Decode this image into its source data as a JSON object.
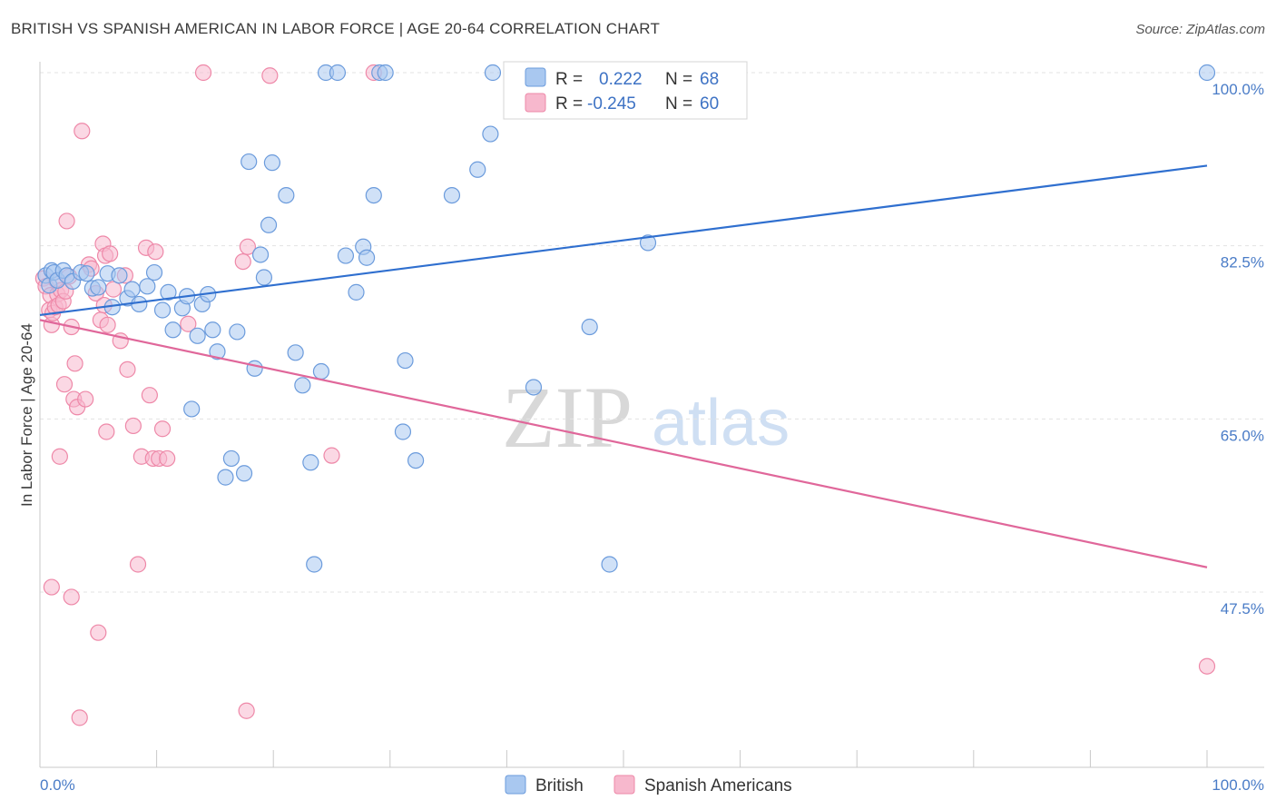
{
  "header": {
    "title": "BRITISH VS SPANISH AMERICAN IN LABOR FORCE | AGE 20-64 CORRELATION CHART",
    "source": "Source: ZipAtlas.com"
  },
  "watermark": {
    "zip": "ZIP",
    "atlas": "atlas"
  },
  "legend": {
    "british": {
      "r_label": "R =",
      "r_value": "0.222",
      "n_label": "N =",
      "n_value": "68"
    },
    "spanish": {
      "r_label": "R =",
      "r_value": "-0.245",
      "n_label": "N =",
      "n_value": "60"
    }
  },
  "bottom_legend": {
    "british": "British",
    "spanish": "Spanish Americans"
  },
  "colors": {
    "british_fill": "#a9c8f0",
    "british_stroke": "#6b9bdc",
    "british_line": "#2f6fcf",
    "spanish_fill": "#f7b8cd",
    "spanish_stroke": "#ee88a8",
    "spanish_line": "#e0679a"
  },
  "chart_data": {
    "type": "scatter",
    "title": "BRITISH VS SPANISH AMERICAN IN LABOR FORCE | AGE 20-64 CORRELATION CHART",
    "xlabel": "",
    "ylabel": "In Labor Force | Age 20-64",
    "xlim": [
      0,
      100
    ],
    "ylim": [
      30,
      102
    ],
    "x_tick_labels": [
      "0.0%",
      "100.0%"
    ],
    "y_ticks": [
      47.5,
      65.0,
      82.5,
      100.0
    ],
    "y_tick_labels": [
      "47.5%",
      "65.0%",
      "82.5%",
      "100.0%"
    ],
    "series": [
      {
        "name": "British",
        "r": 0.222,
        "n": 68,
        "trend": {
          "x": [
            0,
            100
          ],
          "y": [
            75.5,
            90.6
          ]
        },
        "points": [
          [
            0.5,
            79.5
          ],
          [
            0.8,
            78.5
          ],
          [
            1.0,
            80.0
          ],
          [
            1.2,
            79.8
          ],
          [
            1.5,
            79.0
          ],
          [
            2.0,
            80.0
          ],
          [
            2.3,
            79.5
          ],
          [
            2.8,
            78.9
          ],
          [
            3.5,
            79.8
          ],
          [
            4.0,
            79.7
          ],
          [
            4.5,
            78.2
          ],
          [
            5.0,
            78.3
          ],
          [
            5.8,
            79.7
          ],
          [
            6.2,
            76.3
          ],
          [
            6.8,
            79.5
          ],
          [
            7.5,
            77.2
          ],
          [
            7.9,
            78.1
          ],
          [
            8.5,
            76.6
          ],
          [
            9.2,
            78.4
          ],
          [
            9.8,
            79.8
          ],
          [
            10.5,
            76.0
          ],
          [
            11.0,
            77.8
          ],
          [
            11.4,
            74.0
          ],
          [
            12.2,
            76.2
          ],
          [
            12.6,
            77.4
          ],
          [
            13.0,
            66.0
          ],
          [
            13.5,
            73.4
          ],
          [
            13.9,
            76.6
          ],
          [
            14.4,
            77.6
          ],
          [
            14.8,
            74.0
          ],
          [
            15.2,
            71.8
          ],
          [
            15.9,
            59.1
          ],
          [
            16.4,
            61.0
          ],
          [
            16.9,
            73.8
          ],
          [
            17.5,
            59.5
          ],
          [
            17.9,
            91.0
          ],
          [
            18.4,
            70.1
          ],
          [
            18.9,
            81.6
          ],
          [
            19.2,
            79.3
          ],
          [
            19.6,
            84.6
          ],
          [
            19.9,
            90.9
          ],
          [
            21.1,
            87.6
          ],
          [
            21.9,
            71.7
          ],
          [
            22.5,
            68.4
          ],
          [
            23.2,
            60.6
          ],
          [
            23.5,
            50.3
          ],
          [
            24.1,
            69.8
          ],
          [
            24.5,
            100.0
          ],
          [
            25.5,
            100.0
          ],
          [
            26.2,
            81.5
          ],
          [
            27.1,
            77.8
          ],
          [
            27.7,
            82.4
          ],
          [
            28.0,
            81.3
          ],
          [
            28.6,
            87.6
          ],
          [
            29.1,
            100.0
          ],
          [
            29.6,
            100.0
          ],
          [
            31.3,
            70.9
          ],
          [
            31.1,
            63.7
          ],
          [
            32.2,
            60.8
          ],
          [
            35.3,
            87.6
          ],
          [
            37.5,
            90.2
          ],
          [
            38.6,
            93.8
          ],
          [
            38.8,
            100.0
          ],
          [
            42.3,
            68.2
          ],
          [
            47.1,
            74.3
          ],
          [
            48.8,
            50.3
          ],
          [
            52.1,
            82.8
          ],
          [
            100.0,
            100.0
          ]
        ]
      },
      {
        "name": "Spanish Americans",
        "r": -0.245,
        "n": 60,
        "trend": {
          "x": [
            0,
            100
          ],
          "y": [
            75.0,
            50.0
          ]
        },
        "points": [
          [
            0.3,
            79.2
          ],
          [
            0.5,
            78.4
          ],
          [
            0.8,
            76.0
          ],
          [
            0.9,
            77.5
          ],
          [
            1.0,
            74.5
          ],
          [
            1.1,
            75.7
          ],
          [
            1.3,
            76.3
          ],
          [
            1.4,
            79.0
          ],
          [
            1.5,
            77.6
          ],
          [
            1.6,
            76.5
          ],
          [
            1.8,
            78.0
          ],
          [
            2.0,
            76.9
          ],
          [
            2.2,
            77.9
          ],
          [
            1.7,
            61.2
          ],
          [
            2.1,
            68.5
          ],
          [
            2.3,
            85.0
          ],
          [
            2.5,
            79.4
          ],
          [
            2.7,
            74.3
          ],
          [
            2.9,
            67.0
          ],
          [
            3.0,
            70.6
          ],
          [
            3.2,
            66.2
          ],
          [
            3.4,
            34.8
          ],
          [
            3.6,
            94.1
          ],
          [
            3.9,
            67.0
          ],
          [
            4.2,
            80.6
          ],
          [
            4.4,
            80.2
          ],
          [
            4.8,
            77.7
          ],
          [
            5.0,
            43.4
          ],
          [
            5.2,
            75.0
          ],
          [
            5.4,
            82.7
          ],
          [
            5.5,
            76.5
          ],
          [
            5.6,
            81.5
          ],
          [
            5.7,
            63.7
          ],
          [
            5.8,
            74.5
          ],
          [
            6.0,
            81.7
          ],
          [
            6.3,
            78.1
          ],
          [
            6.9,
            72.9
          ],
          [
            7.3,
            79.5
          ],
          [
            7.5,
            70.0
          ],
          [
            8.0,
            64.3
          ],
          [
            8.4,
            50.3
          ],
          [
            8.7,
            61.2
          ],
          [
            9.1,
            82.3
          ],
          [
            9.4,
            67.4
          ],
          [
            9.7,
            61.0
          ],
          [
            9.9,
            81.9
          ],
          [
            10.2,
            61.0
          ],
          [
            10.5,
            64.0
          ],
          [
            10.9,
            61.0
          ],
          [
            12.7,
            74.6
          ],
          [
            14.0,
            100.0
          ],
          [
            17.4,
            80.9
          ],
          [
            17.8,
            82.4
          ],
          [
            19.7,
            99.7
          ],
          [
            17.7,
            35.5
          ],
          [
            25.0,
            61.3
          ],
          [
            28.6,
            100.0
          ],
          [
            1.0,
            48.0
          ],
          [
            100.0,
            40.0
          ],
          [
            2.7,
            47.0
          ]
        ]
      }
    ]
  }
}
